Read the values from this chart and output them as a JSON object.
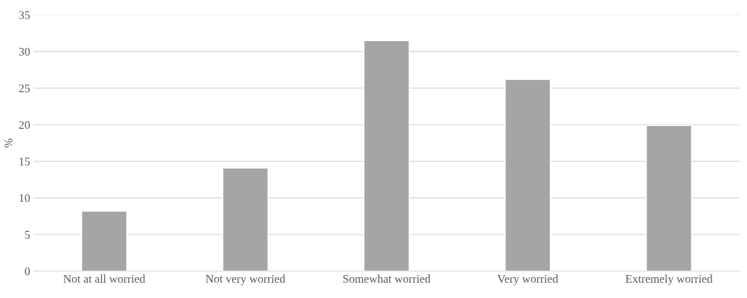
{
  "chart_data": {
    "type": "bar",
    "ylabel": "%",
    "categories": [
      "Not at all worried",
      "Not very worried",
      "Somewhat worried",
      "Very worried",
      "Extremely worried"
    ],
    "values": [
      8.2,
      14.1,
      31.5,
      26.2,
      19.9
    ],
    "color": "#a5a5a5",
    "ylim": [
      0,
      35
    ],
    "yticks": [
      0,
      5,
      10,
      15,
      20,
      25,
      30,
      35
    ],
    "grid": "y"
  }
}
